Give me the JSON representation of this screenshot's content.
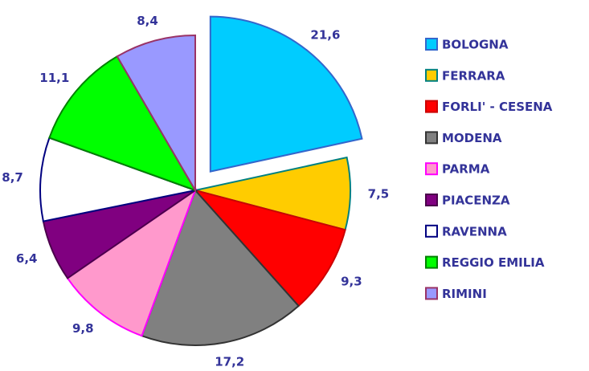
{
  "chart_data": {
    "type": "pie",
    "categories": [
      "BOLOGNA",
      "FERRARA",
      "FORLI' - CESENA",
      "MODENA",
      "PARMA",
      "PIACENZA",
      "RAVENNA",
      "REGGIO EMILIA",
      "RIMINI"
    ],
    "values": [
      21.6,
      7.5,
      9.3,
      17.2,
      9.8,
      6.4,
      8.7,
      11.1,
      8.4
    ],
    "value_labels": [
      "21,6",
      "7,5",
      "9,3",
      "17,2",
      "9,8",
      "6,4",
      "8,7",
      "11,1",
      "8,4"
    ],
    "colors": [
      "#00ccff",
      "#ffcc00",
      "#ff0000",
      "#808080",
      "#ff99cc",
      "#800080",
      "#ffffff",
      "#00ff00",
      "#9999ff"
    ],
    "edge_colors": [
      "#3366cc",
      "#008080",
      "#cc0000",
      "#333333",
      "#ff00ff",
      "#4b004b",
      "#000080",
      "#008000",
      "#993366"
    ],
    "exploded": [
      0
    ],
    "legend": "right"
  }
}
